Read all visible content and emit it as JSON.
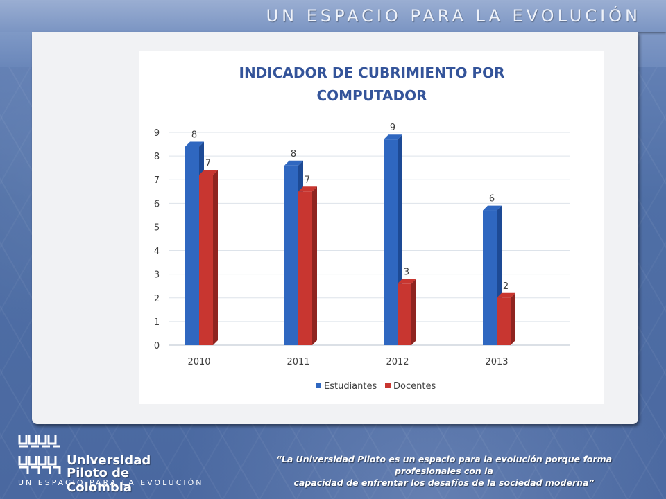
{
  "header": {
    "title": "UN ESPACIO PARA LA EVOLUCIÓN"
  },
  "footer": {
    "university_line1": "Universidad",
    "university_line2": "Piloto de Colombia",
    "tagline": "UN ESPACIO PARA LA EVOLUCIÓN",
    "quote_line1": "“La Universidad Piloto es un espacio para la evolución porque forma profesionales con la",
    "quote_line2": "capacidad de enfrentar los desafíos de la sociedad moderna”"
  },
  "colors": {
    "estudiantes": "#2f67c0",
    "docentes": "#c83630",
    "title": "#34549a"
  },
  "chart_data": {
    "type": "bar",
    "title_line1": "INDICADOR DE CUBRIMIENTO POR",
    "title_line2": "COMPUTADOR",
    "categories": [
      "2010",
      "2011",
      "2012",
      "2013"
    ],
    "series": [
      {
        "name": "Estudiantes",
        "values": [
          8.4,
          7.6,
          8.7,
          5.7
        ],
        "labels": [
          "8",
          "8",
          "9",
          "6"
        ]
      },
      {
        "name": "Docentes",
        "values": [
          7.2,
          6.5,
          2.6,
          2.0
        ],
        "labels": [
          "7",
          "7",
          "3",
          "2"
        ]
      }
    ],
    "yticks": [
      "0",
      "1",
      "2",
      "3",
      "4",
      "5",
      "6",
      "7",
      "8",
      "9"
    ],
    "ylim": [
      0,
      9
    ],
    "grid": true,
    "legend": "bottom"
  }
}
